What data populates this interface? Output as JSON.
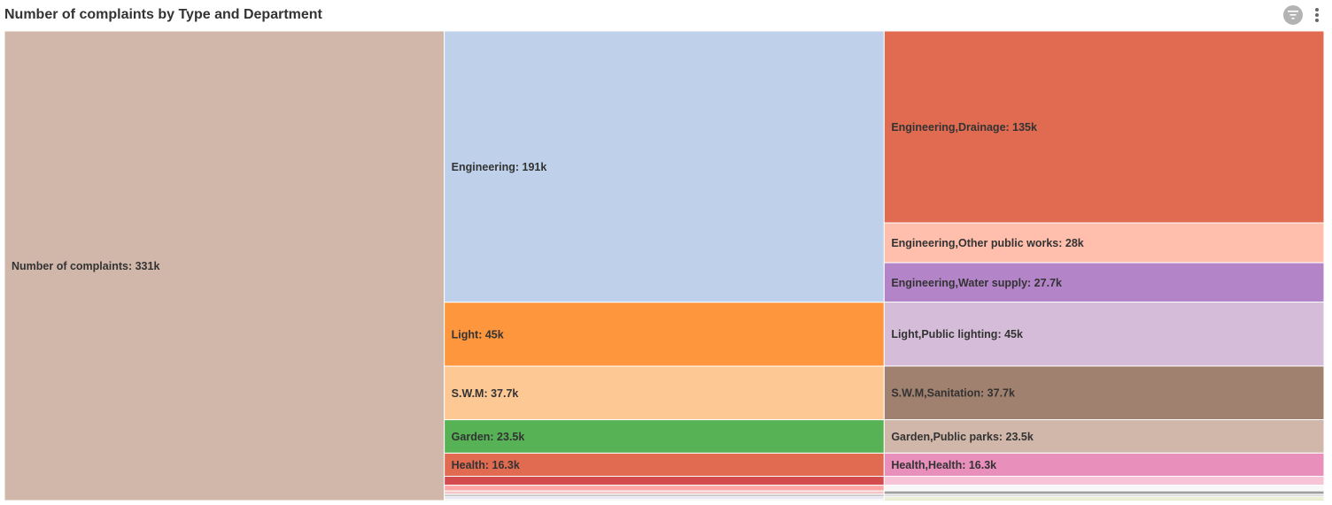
{
  "header": {
    "title": "Number of complaints by Type and Department",
    "filter_icon": "filter-icon",
    "menu_icon": "more-vertical-icon"
  },
  "chart_data": {
    "type": "treemap",
    "title": "Number of complaints by Type and Department",
    "levels": [
      {
        "level": 0,
        "nodes": [
          {
            "name": "Number of complaints",
            "value": 331000,
            "label": "Number of complaints: 331k",
            "color": "#d0b7aa"
          }
        ]
      },
      {
        "level": 1,
        "nodes": [
          {
            "name": "Engineering",
            "value": 191000,
            "label": "Engineering: 191k",
            "color": "#bfd1ea"
          },
          {
            "name": "Light",
            "value": 45000,
            "label": "Light: 45k",
            "color": "#fe963e"
          },
          {
            "name": "S.W.M",
            "value": 37700,
            "label": "S.W.M: 37.7k",
            "color": "#fec894"
          },
          {
            "name": "Garden",
            "value": 23500,
            "label": "Garden: 23.5k",
            "color": "#56b255"
          },
          {
            "name": "Health",
            "value": 16300,
            "label": "Health: 16.3k",
            "color": "#e06b50"
          },
          {
            "name": "",
            "value": 6300,
            "label": "",
            "color": "#d34b4c"
          },
          {
            "name": "",
            "value": 4000,
            "label": "",
            "color": "#fca5a5"
          },
          {
            "name": "",
            "value": 2400,
            "label": "",
            "color": "#f2c6c6"
          },
          {
            "name": "",
            "value": 1800,
            "label": "",
            "color": "#c4c4c4"
          },
          {
            "name": "",
            "value": 1400,
            "label": "",
            "color": "#d6d6ee"
          },
          {
            "name": "",
            "value": 1200,
            "label": "",
            "color": "#ececec"
          }
        ]
      },
      {
        "level": 2,
        "nodes": [
          {
            "name": "Engineering,Drainage",
            "value": 135000,
            "label": "Engineering,Drainage: 135k",
            "color": "#e06b50"
          },
          {
            "name": "Engineering,Other public works",
            "value": 28000,
            "label": "Engineering,Other public works: 28k",
            "color": "#ffbfac"
          },
          {
            "name": "Engineering,Water supply",
            "value": 27700,
            "label": "Engineering,Water supply: 27.7k",
            "color": "#b484c9"
          },
          {
            "name": "Light,Public lighting",
            "value": 45000,
            "label": "Light,Public lighting: 45k",
            "color": "#d5bcd9"
          },
          {
            "name": "S.W.M,Sanitation",
            "value": 37700,
            "label": "S.W.M,Sanitation: 37.7k",
            "color": "#a0806e"
          },
          {
            "name": "Garden,Public parks",
            "value": 23500,
            "label": "Garden,Public parks: 23.5k",
            "color": "#d0b7aa"
          },
          {
            "name": "Health,Health",
            "value": 16300,
            "label": "Health,Health: 16.3k",
            "color": "#e98fbc"
          },
          {
            "name": "",
            "value": 6300,
            "label": "",
            "color": "#f6c3d7"
          },
          {
            "name": "",
            "value": 4000,
            "label": "",
            "color": "#f7f7f7"
          },
          {
            "name": "",
            "value": 2400,
            "label": "",
            "color": "#9e9e9e"
          },
          {
            "name": "",
            "value": 1800,
            "label": "",
            "color": "#dadada"
          },
          {
            "name": "",
            "value": 1400,
            "label": "",
            "color": "#dde6bd"
          },
          {
            "name": "",
            "value": 1200,
            "label": "",
            "color": "#c9d899"
          }
        ]
      }
    ]
  }
}
